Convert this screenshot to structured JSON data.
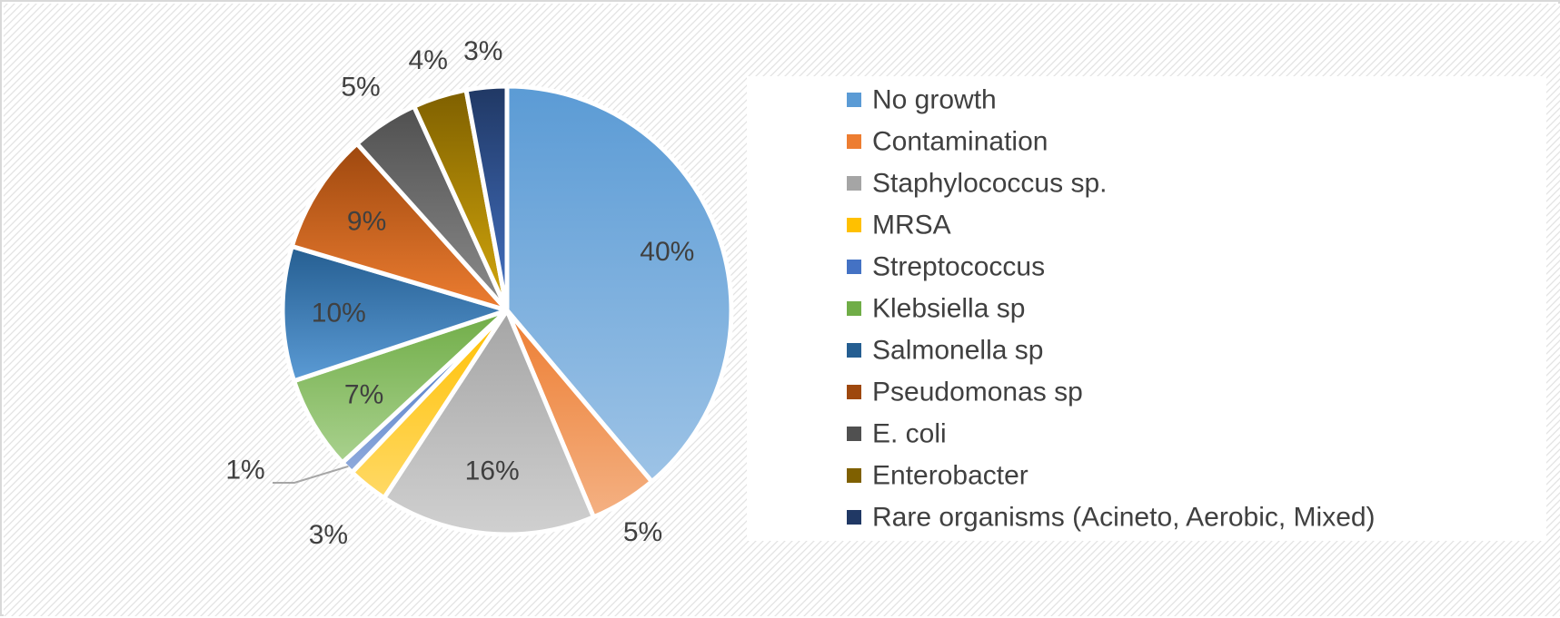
{
  "chart_data": {
    "type": "pie",
    "categories": [
      "No growth",
      "Contamination",
      "Staphylococcus sp.",
      "MRSA",
      "Streptococcus",
      "Klebsiella sp",
      "Salmonella sp",
      "Pseudomonas sp",
      "E. coli",
      "Enterobacter",
      "Rare organisms (Acineto, Aerobic, Mixed)"
    ],
    "values": [
      40,
      5,
      16,
      3,
      1,
      7,
      10,
      9,
      5,
      4,
      3
    ],
    "data_labels": [
      "40%",
      "5%",
      "16%",
      "3%",
      "1%",
      "7%",
      "10%",
      "9%",
      "5%",
      "4%",
      "3%"
    ],
    "colors": [
      [
        "#5b9bd5",
        "#9dc3e6"
      ],
      [
        "#ed7d31",
        "#f4b183"
      ],
      [
        "#a5a5a5",
        "#d0d0d0"
      ],
      [
        "#ffc000",
        "#ffd966"
      ],
      [
        "#4472c4",
        "#8faadc"
      ],
      [
        "#70ad47",
        "#a9d18e"
      ],
      [
        "#255e91",
        "#5b9bd5"
      ],
      [
        "#9e480e",
        "#ed7d31"
      ],
      [
        "#505050",
        "#8c8c8c"
      ],
      [
        "#7f6000",
        "#d4a80c"
      ],
      [
        "#203864",
        "#4472c4"
      ]
    ],
    "legend_position": "right",
    "start_angle_deg": 0,
    "direction": "clockwise",
    "background": "diagonal-hatch"
  }
}
